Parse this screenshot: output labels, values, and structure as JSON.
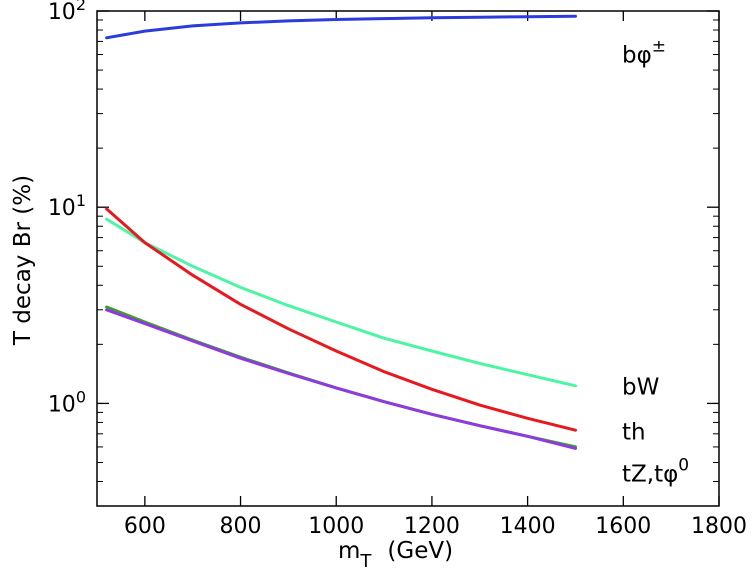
{
  "chart_data": {
    "type": "line",
    "title": "",
    "xlabel_main": "m",
    "xlabel_sub": "T",
    "xlabel_unit": "(GeV)",
    "ylabel": "T decay  Br (%)",
    "xlim": [
      500,
      1800
    ],
    "ylim": [
      0.3,
      100
    ],
    "yscale": "log",
    "grid": false,
    "x_ticks": [
      "600",
      "800",
      "1000",
      "1200",
      "1400",
      "1600",
      "1800"
    ],
    "x_tick_values": [
      600,
      800,
      1000,
      1200,
      1400,
      1600,
      1800
    ],
    "y_ticks": [
      {
        "value": 1,
        "base": "10",
        "exp": "0"
      },
      {
        "value": 10,
        "base": "10",
        "exp": "1"
      },
      {
        "value": 100,
        "base": "10",
        "exp": "2"
      }
    ],
    "series": [
      {
        "key": "bphi",
        "label_main": "bφ",
        "label_sup": "±",
        "label_y": 60,
        "color": "#2b3bdc",
        "x": [
          520,
          600,
          700,
          800,
          900,
          1000,
          1100,
          1200,
          1300,
          1400,
          1500
        ],
        "y": [
          73,
          79,
          84,
          87,
          89,
          90.5,
          91.5,
          92.3,
          93,
          93.5,
          94
        ]
      },
      {
        "key": "bW",
        "label_main": "bW",
        "label_sup": "",
        "label_y": 1.22,
        "color": "#4cf5a4",
        "x": [
          520,
          600,
          700,
          800,
          900,
          1000,
          1100,
          1200,
          1300,
          1400,
          1500
        ],
        "y": [
          8.7,
          6.6,
          5.0,
          3.9,
          3.15,
          2.6,
          2.15,
          1.85,
          1.6,
          1.4,
          1.23
        ]
      },
      {
        "key": "th",
        "label_main": "th",
        "label_sup": "",
        "label_y": 0.72,
        "color": "#e8191e",
        "x": [
          520,
          600,
          700,
          800,
          900,
          1000,
          1100,
          1200,
          1300,
          1400,
          1500
        ],
        "y": [
          9.8,
          6.6,
          4.5,
          3.2,
          2.4,
          1.85,
          1.45,
          1.18,
          0.98,
          0.84,
          0.73
        ]
      },
      {
        "key": "tZ",
        "label_main": "tZ,tφ",
        "label_sup": "0",
        "label_y": 0.44,
        "color": "#3aa028",
        "x": [
          520,
          600,
          700,
          800,
          900,
          1000,
          1100,
          1200,
          1300,
          1400,
          1500
        ],
        "y": [
          3.1,
          2.6,
          2.1,
          1.72,
          1.43,
          1.2,
          1.02,
          0.88,
          0.77,
          0.68,
          0.6
        ]
      },
      {
        "key": "tphi0",
        "label_main": "",
        "label_sup": "",
        "label_y": 0.44,
        "color": "#8e3ae0",
        "x": [
          520,
          600,
          700,
          800,
          900,
          1000,
          1100,
          1200,
          1300,
          1400,
          1500
        ],
        "y": [
          3.0,
          2.55,
          2.08,
          1.7,
          1.42,
          1.2,
          1.02,
          0.88,
          0.77,
          0.68,
          0.59
        ]
      }
    ]
  }
}
